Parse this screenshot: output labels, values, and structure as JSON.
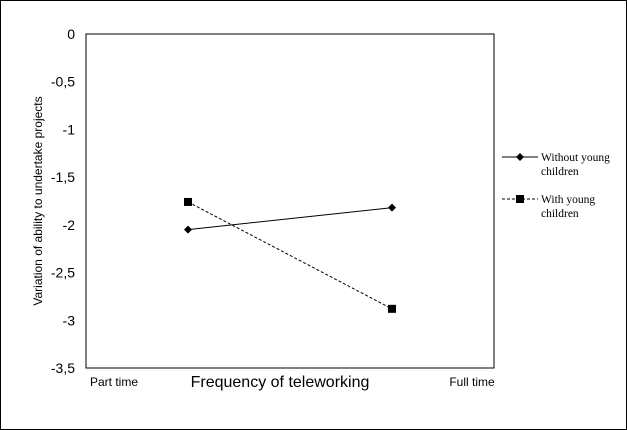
{
  "chart_data": {
    "type": "line",
    "title": "",
    "xlabel": "Frequency of teleworking",
    "ylabel": "Variation of ability to undertake projects",
    "categories": [
      "Part time",
      "Full time"
    ],
    "ylim": [
      -3.5,
      0
    ],
    "yticks": [
      0,
      -0.5,
      -1,
      -1.5,
      -2,
      -2.5,
      -3,
      -3.5
    ],
    "ytick_labels": [
      "0",
      "-0,5",
      "-1",
      "-1,5",
      "-2",
      "-2,5",
      "-3",
      "-3,5"
    ],
    "grid": false,
    "legend_position": "right",
    "series": [
      {
        "name_lines": [
          "Without young",
          "children"
        ],
        "x": [
          0.25,
          0.75
        ],
        "values": [
          -2.05,
          -1.82
        ],
        "marker": "diamond",
        "line_style": "solid",
        "color": "#000000"
      },
      {
        "name_lines": [
          "With young",
          "children"
        ],
        "x": [
          0.25,
          0.75
        ],
        "values": [
          -1.76,
          -2.88
        ],
        "marker": "square",
        "line_style": "dashed",
        "color": "#000000"
      }
    ]
  }
}
